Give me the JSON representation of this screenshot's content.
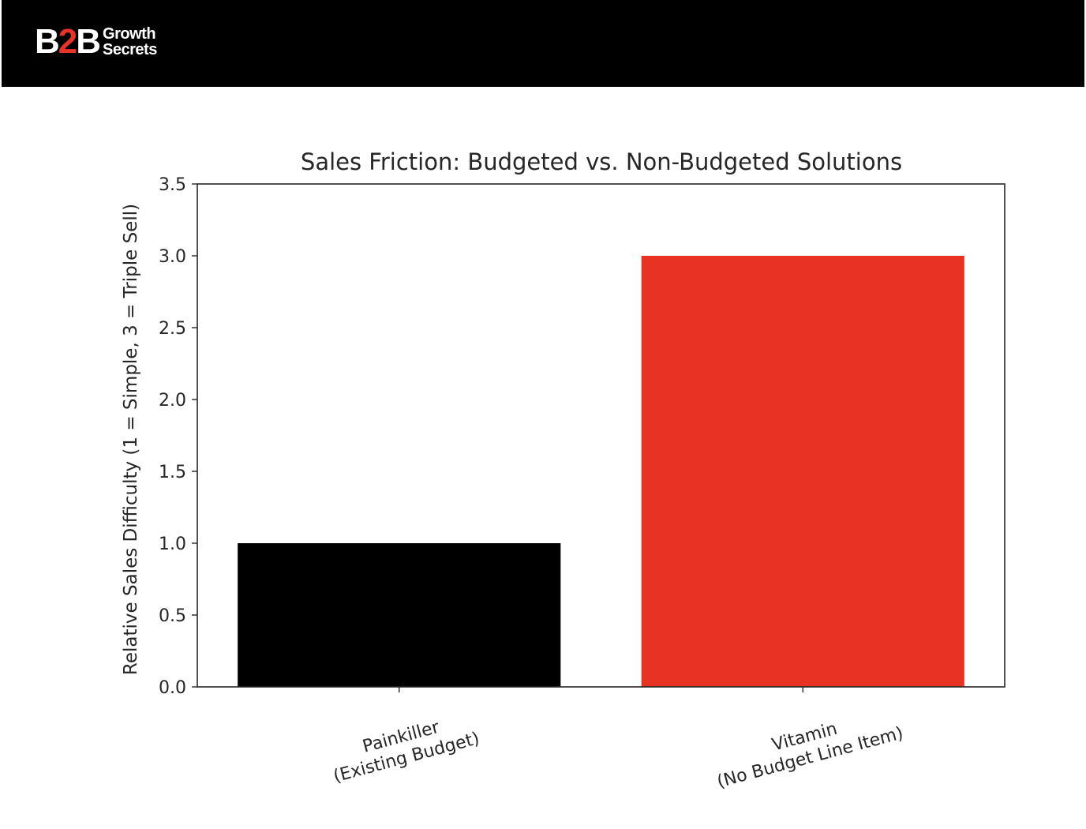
{
  "brand": {
    "mark_left": "B",
    "mark_mid": "2",
    "mark_right": "B",
    "word1": "Growth",
    "word2": "Secrets",
    "colors": {
      "header_bg": "#000000",
      "accent": "#e8332a",
      "text": "#ffffff"
    }
  },
  "chart_data": {
    "type": "bar",
    "title": "Sales Friction: Budgeted vs. Non-Budgeted Solutions",
    "xlabel": "",
    "ylabel": "Relative Sales Difficulty (1 = Simple, 3 = Triple Sell)",
    "categories": [
      [
        "Painkiller",
        "(Existing Budget)"
      ],
      [
        "Vitamin",
        "(No Budget Line Item)"
      ]
    ],
    "values": [
      1,
      3
    ],
    "bar_colors": [
      "#000000",
      "#e83324"
    ],
    "ylim": [
      0,
      3.5
    ],
    "yticks": [
      "0.0",
      "0.5",
      "1.0",
      "1.5",
      "2.0",
      "2.5",
      "3.0",
      "3.5"
    ],
    "grid": false,
    "legend": "none"
  }
}
